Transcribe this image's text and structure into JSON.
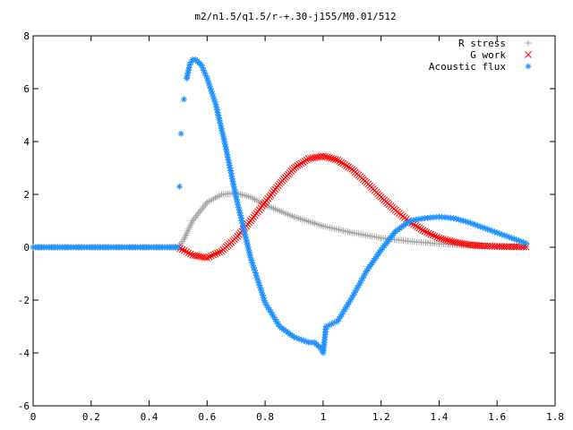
{
  "chart_data": {
    "type": "scatter",
    "title": "m2/n1.5/q1.5/r-+.30-j155/M0.01/512",
    "xlabel": "",
    "ylabel": "",
    "xlim": [
      0,
      1.8
    ],
    "ylim": [
      -6,
      8
    ],
    "x_ticks": [
      "0",
      "0.2",
      "0.4",
      "0.6",
      "0.8",
      "1",
      "1.2",
      "1.4",
      "1.6",
      "1.8"
    ],
    "y_ticks": [
      "-6",
      "-4",
      "-2",
      "0",
      "2",
      "4",
      "6",
      "8"
    ],
    "grid": false,
    "legend_position": "top-right",
    "series": [
      {
        "name": "R stress",
        "marker": "plus",
        "color": "#a0a0a0",
        "x": [
          0.0,
          0.5,
          0.52,
          0.55,
          0.6,
          0.65,
          0.7,
          0.75,
          0.8,
          0.9,
          1.0,
          1.1,
          1.2,
          1.3,
          1.4,
          1.5,
          1.6,
          1.7
        ],
        "y": [
          0.0,
          0.0,
          0.3,
          1.0,
          1.7,
          2.0,
          2.05,
          1.9,
          1.6,
          1.15,
          0.8,
          0.55,
          0.35,
          0.22,
          0.13,
          0.07,
          0.04,
          0.02
        ]
      },
      {
        "name": "G work",
        "marker": "cross",
        "color": "#ff0000",
        "x": [
          0.5,
          0.55,
          0.6,
          0.65,
          0.7,
          0.75,
          0.8,
          0.85,
          0.9,
          0.95,
          1.0,
          1.05,
          1.1,
          1.15,
          1.2,
          1.25,
          1.3,
          1.35,
          1.4,
          1.45,
          1.5,
          1.55,
          1.6,
          1.65,
          1.7
        ],
        "y": [
          0.0,
          -0.3,
          -0.4,
          -0.15,
          0.35,
          1.0,
          1.7,
          2.4,
          3.0,
          3.35,
          3.45,
          3.3,
          2.95,
          2.45,
          1.9,
          1.4,
          0.95,
          0.6,
          0.35,
          0.2,
          0.1,
          0.05,
          0.03,
          0.02,
          0.01
        ]
      },
      {
        "name": "Acoustic flux",
        "marker": "star",
        "color": "#1e90ff",
        "x": [
          0.0,
          0.5,
          0.505,
          0.51,
          0.52,
          0.53,
          0.54,
          0.55,
          0.56,
          0.58,
          0.6,
          0.63,
          0.66,
          0.7,
          0.75,
          0.8,
          0.85,
          0.9,
          0.95,
          0.97,
          0.99,
          1.0,
          1.01,
          1.03,
          1.05,
          1.1,
          1.15,
          1.2,
          1.25,
          1.3,
          1.35,
          1.4,
          1.45,
          1.5,
          1.55,
          1.6,
          1.65,
          1.7
        ],
        "y": [
          0.0,
          0.0,
          2.3,
          4.3,
          5.6,
          6.4,
          6.9,
          7.1,
          7.1,
          6.9,
          6.4,
          5.4,
          4.0,
          1.9,
          -0.4,
          -2.1,
          -3.0,
          -3.4,
          -3.6,
          -3.6,
          -3.8,
          -4.0,
          -3.0,
          -2.9,
          -2.8,
          -1.9,
          -0.9,
          -0.1,
          0.6,
          1.0,
          1.1,
          1.15,
          1.1,
          0.95,
          0.75,
          0.55,
          0.35,
          0.15
        ]
      }
    ]
  }
}
